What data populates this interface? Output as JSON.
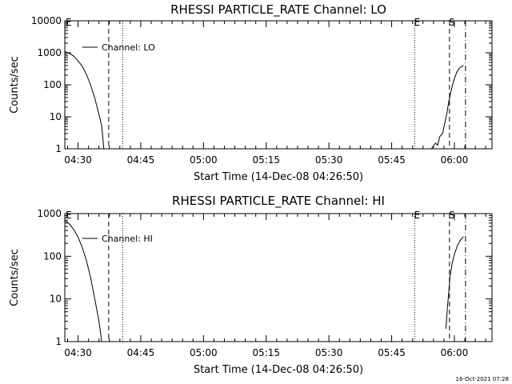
{
  "footer": {
    "timestamp": "16-Oct-2021 07:28"
  },
  "chart_data": [
    {
      "type": "line",
      "title": "RHESSI PARTICLE_RATE Channel: LO",
      "xlabel": "Start Time (14-Dec-08 04:26:50)",
      "ylabel": "Counts/sec",
      "yscale": "log",
      "xlim": [
        "04:26:50",
        "06:09:00"
      ],
      "ylim": [
        1,
        10000
      ],
      "x_tick_labels": [
        "04:30",
        "04:45",
        "05:00",
        "05:15",
        "05:30",
        "05:45",
        "06:00"
      ],
      "y_tick_labels": [
        "1",
        "10",
        "100",
        "1000",
        "10000"
      ],
      "legend": {
        "label": "Channel: LO",
        "position": "top-left"
      },
      "series": [
        {
          "name": "Channel: LO",
          "points": [
            [
              "04:26:50",
              1100
            ],
            [
              "04:28:00",
              950
            ],
            [
              "04:29:00",
              780
            ],
            [
              "04:30:00",
              560
            ],
            [
              "04:31:00",
              380
            ],
            [
              "04:32:00",
              210
            ],
            [
              "04:33:00",
              100
            ],
            [
              "04:34:00",
              38
            ],
            [
              "04:35:00",
              12
            ],
            [
              "04:35:40",
              5
            ],
            [
              "04:36:10",
              1
            ]
          ]
        },
        {
          "name": "Channel: LO",
          "points": [
            [
              "05:54:30",
              1
            ],
            [
              "05:55:30",
              1.5
            ],
            [
              "05:56:00",
              1.3
            ],
            [
              "05:56:30",
              2.4
            ],
            [
              "05:57:10",
              3
            ],
            [
              "05:57:40",
              6
            ],
            [
              "05:58:10",
              12
            ],
            [
              "05:58:40",
              30
            ],
            [
              "05:59:10",
              60
            ],
            [
              "05:59:40",
              110
            ],
            [
              "06:00:10",
              180
            ],
            [
              "06:00:40",
              260
            ],
            [
              "06:01:20",
              340
            ],
            [
              "06:02:10",
              400
            ]
          ]
        }
      ],
      "markers": [
        {
          "label": "E",
          "x": "04:26:50",
          "style": "none"
        },
        {
          "label": "",
          "x": "04:37:20",
          "style": "dashed"
        },
        {
          "label": "",
          "x": "04:40:40",
          "style": "dotted"
        },
        {
          "label": "E",
          "x": "05:50:30",
          "style": "dotted"
        },
        {
          "label": "S",
          "x": "05:58:50",
          "style": "dashed"
        },
        {
          "label": "",
          "x": "06:02:40",
          "style": "dashdot"
        }
      ]
    },
    {
      "type": "line",
      "title": "RHESSI PARTICLE_RATE Channel: HI",
      "xlabel": "Start Time (14-Dec-08 04:26:50)",
      "ylabel": "Counts/sec",
      "yscale": "log",
      "xlim": [
        "04:26:50",
        "06:09:00"
      ],
      "ylim": [
        1,
        1000
      ],
      "x_tick_labels": [
        "04:30",
        "04:45",
        "05:00",
        "05:15",
        "05:30",
        "05:45",
        "06:00"
      ],
      "y_tick_labels": [
        "1",
        "10",
        "100",
        "1000"
      ],
      "legend": {
        "label": "Channel: HI",
        "position": "top-left"
      },
      "series": [
        {
          "name": "Channel: HI",
          "points": [
            [
              "04:26:50",
              700
            ],
            [
              "04:28:00",
              560
            ],
            [
              "04:29:00",
              420
            ],
            [
              "04:30:00",
              280
            ],
            [
              "04:31:00",
              160
            ],
            [
              "04:32:00",
              80
            ],
            [
              "04:33:00",
              32
            ],
            [
              "04:34:00",
              10
            ],
            [
              "04:35:00",
              3
            ],
            [
              "04:35:40",
              1
            ]
          ]
        },
        {
          "name": "Channel: HI",
          "points": [
            [
              "05:58:00",
              2
            ],
            [
              "05:58:20",
              6
            ],
            [
              "05:58:40",
              15
            ],
            [
              "05:59:00",
              35
            ],
            [
              "05:59:30",
              70
            ],
            [
              "06:00:00",
              110
            ],
            [
              "06:00:40",
              170
            ],
            [
              "06:01:20",
              230
            ],
            [
              "06:02:10",
              290
            ]
          ]
        }
      ],
      "markers": [
        {
          "label": "E",
          "x": "04:26:50",
          "style": "none"
        },
        {
          "label": "",
          "x": "04:37:20",
          "style": "dashed"
        },
        {
          "label": "",
          "x": "04:40:40",
          "style": "dotted"
        },
        {
          "label": "E",
          "x": "05:50:30",
          "style": "dotted"
        },
        {
          "label": "S",
          "x": "05:58:50",
          "style": "dashed"
        },
        {
          "label": "",
          "x": "06:02:40",
          "style": "dashdot"
        }
      ]
    }
  ]
}
